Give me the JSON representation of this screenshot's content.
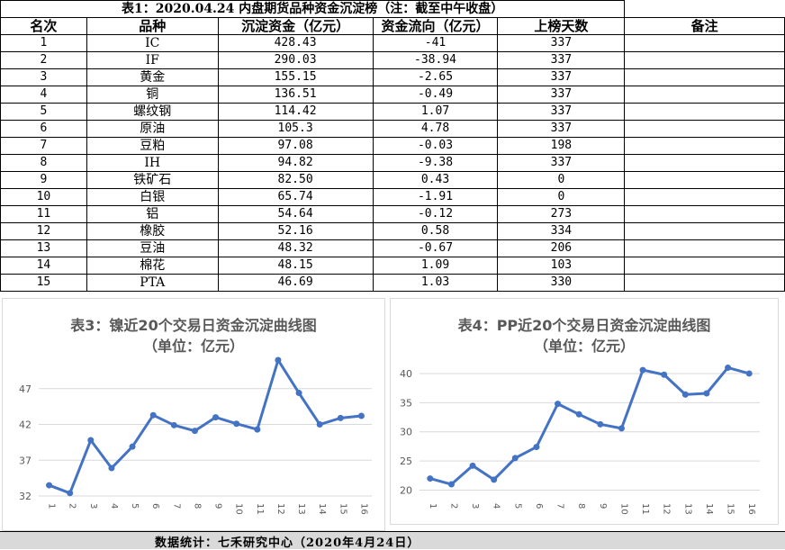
{
  "table": {
    "title": "表1：2020.04.24 内盘期货品种资金沉淀榜（注：截至中午收盘）",
    "headers": [
      "名次",
      "品种",
      "沉淀资金（亿元）",
      "资金流向（亿元）",
      "上榜天数",
      "备注"
    ],
    "rows": [
      [
        "1",
        "IC",
        "428.43",
        "-41",
        "337",
        ""
      ],
      [
        "2",
        "IF",
        "290.03",
        "-38.94",
        "337",
        ""
      ],
      [
        "3",
        "黄金",
        "155.15",
        "-2.65",
        "337",
        ""
      ],
      [
        "4",
        "铜",
        "136.51",
        "-0.49",
        "337",
        ""
      ],
      [
        "5",
        "螺纹钢",
        "114.42",
        "1.07",
        "337",
        ""
      ],
      [
        "6",
        "原油",
        "105.3",
        "4.78",
        "337",
        ""
      ],
      [
        "7",
        "豆粕",
        "97.08",
        "-0.03",
        "198",
        ""
      ],
      [
        "8",
        "IH",
        "94.82",
        "-9.38",
        "337",
        ""
      ],
      [
        "9",
        "铁矿石",
        "82.50",
        "0.43",
        "0",
        ""
      ],
      [
        "10",
        "白银",
        "65.74",
        "-1.91",
        "0",
        ""
      ],
      [
        "11",
        "铝",
        "54.64",
        "-0.12",
        "273",
        ""
      ],
      [
        "12",
        "橡胶",
        "52.16",
        "0.58",
        "334",
        ""
      ],
      [
        "13",
        "豆油",
        "48.32",
        "-0.67",
        "206",
        ""
      ],
      [
        "14",
        "棉花",
        "48.15",
        "1.09",
        "103",
        ""
      ],
      [
        "15",
        "PTA",
        "46.69",
        "1.03",
        "330",
        ""
      ]
    ]
  },
  "footer": {
    "text": "数据统计：七禾研究中心（2020年4月24日）"
  },
  "colors": {
    "line": "#4472c4",
    "grid": "#d9d9d9",
    "title": "#595959",
    "footer_bg": "#d9d9d9"
  },
  "chart_data": [
    {
      "type": "line",
      "title_line1": "表3：镍近20个交易日资金沉淀曲线图",
      "title_line2": "（单位：亿元）",
      "x": [
        "1",
        "2",
        "3",
        "4",
        "5",
        "6",
        "7",
        "8",
        "9",
        "10",
        "11",
        "12",
        "13",
        "14",
        "15",
        "16"
      ],
      "yticks": [
        32,
        37,
        42,
        47
      ],
      "ylim": [
        32,
        51
      ],
      "grid": true,
      "series": [
        {
          "values": [
            33.5,
            32.4,
            39.8,
            35.9,
            38.9,
            43.3,
            41.9,
            41.1,
            43.0,
            42.1,
            41.3,
            51.0,
            46.4,
            42.0,
            42.9,
            43.2
          ]
        }
      ]
    },
    {
      "type": "line",
      "title_line1": "表4：PP近20个交易日资金沉淀曲线图",
      "title_line2": "（单位：亿元）",
      "x": [
        "1",
        "2",
        "3",
        "4",
        "5",
        "6",
        "7",
        "8",
        "9",
        "10",
        "11",
        "12",
        "13",
        "14",
        "15",
        "16"
      ],
      "yticks": [
        20,
        25,
        30,
        35,
        40
      ],
      "ylim": [
        19,
        42
      ],
      "grid": true,
      "series": [
        {
          "values": [
            22.0,
            21.0,
            24.2,
            21.8,
            25.5,
            27.4,
            34.8,
            33.0,
            31.3,
            30.6,
            40.6,
            39.8,
            36.4,
            36.6,
            41.0,
            40.0
          ]
        }
      ]
    }
  ]
}
